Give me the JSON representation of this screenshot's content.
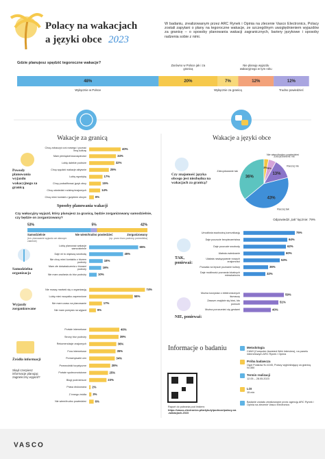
{
  "header": {
    "title": "Polacy na wakacjach",
    "title2": "a języki obce",
    "year": "2023",
    "intro": "W badaniu, zrealizowanym przez ARC Rynek i Opinia na zlecenie Vasco Electronics, Polacy zostali zapytani o plany na tegoroczne wakacje, ze szczególnym uwzględnieniem wyjazdów za granicę – o sposoby planowania wakacji zagranicznych, bariery językowe i sposoby radzenia sobie z nimi."
  },
  "chart_data": [
    {
      "type": "stacked_bar",
      "title": "Gdzie planujesz spędzić tegoroczne wakacje?",
      "categories": [
        "Wyłącznie w Polsce",
        "Zarówno w Polsce jak i za granicą",
        "Wyłącznie za granicą",
        "Nie planuję wyjazdu wakacyjnego w tym roku",
        "Trudno powiedzieć"
      ],
      "values": [
        48,
        20,
        7,
        12,
        12
      ],
      "value_labels": [
        "48%",
        "20%",
        "7%",
        "12%",
        "12%"
      ],
      "colors": [
        "#5fb3e4",
        "#f6c94c",
        "#f8d97a",
        "#f3a27a",
        "#a9a5e0"
      ]
    },
    {
      "type": "hbar",
      "section": "Wakacje za granicą",
      "title": "Powody planowania wyjazdu wakacyjnego za granicą",
      "categories": [
        "Chcę zobaczyć coś nowego i poznać inną kulturę",
        "Mam pieniądze/oszczędności",
        "Lubię dalekie podróże",
        "Chcę spędzić wakacje aktywnie",
        "Lubię egzotykę",
        "Chcę podszlifować język obcy",
        "Chcę odwiedzić rodzinę/znajomych",
        "Chcę mieć kontakt z językiem obcym"
      ],
      "values": [
        40,
        34,
        32,
        25,
        17,
        15,
        14,
        6
      ],
      "value_labels": [
        "40%",
        "34%",
        "32%",
        "25%",
        "17%",
        "15%",
        "14%",
        "6%"
      ],
      "color": "#f6c94c"
    },
    {
      "type": "stacked_bar",
      "section": "Sposoby planowania wakacji",
      "title": "Czy wakacyjny wyjazd, który planujesz za granicą, będzie zorganizowany samodzielnie, czy będzie on zorganizowany?",
      "categories": [
        "Samodzielnie",
        "Nie wiem/trudno powiedzieć",
        "Zorganizowany"
      ],
      "category_notes": [
        "(tzn. planowanie wyjazdu we własnym zakresie)",
        null,
        "(np. przez biuro podróży, pośrednika)"
      ],
      "values": [
        53,
        5,
        42
      ],
      "value_labels": [
        "53%",
        "5%",
        "42%"
      ],
      "colors": [
        "#5fb3e4",
        "#a9a5e0",
        "#f6c94c"
      ]
    },
    {
      "type": "hbar",
      "title": "Samodzielna organizacja",
      "categories": [
        "Lubię planować wakacje samodzielnie",
        "Daje mi to większą swobodę",
        "Nie chcę mieć kontaktu z biurem podróży",
        "Mam złe doświadczenia z biurami podróży",
        "Nie mam zaufania do biur podróży"
      ],
      "values": [
        65,
        45,
        18,
        16,
        10
      ],
      "value_labels": [
        "65%",
        "45%",
        "18%",
        "16%",
        "10%"
      ],
      "color": "#5fb3e4"
    },
    {
      "type": "hbar",
      "title": "Wyjazdy zorganizowane",
      "categories": [
        "Nie muszę martwić się o organizację",
        "Lubię mieć wszystko zapewnione",
        "Nie mam czasu na planowanie",
        "Nie mam pomysłu na wyjazd"
      ],
      "values": [
        74,
        58,
        17,
        9
      ],
      "value_labels": [
        "74%",
        "58%",
        "17%",
        "9%"
      ],
      "color": "#f6c94c"
    },
    {
      "type": "hbar",
      "title": "Źródła informacji",
      "question": "Skąd czerpiesz informacje planując zagraniczny wyjazd?",
      "categories": [
        "Portale internetowe",
        "Strony biur podróży",
        "Rekomendacje znajomych",
        "Fora internetowe",
        "Porównywarki cen",
        "Przewodniki turystyczne",
        "Portale społecznościowe",
        "Blogi podróżnicze",
        "Prasa drukowana",
        "Z innego źródła",
        "Nie wiem/trudno powiedzieć"
      ],
      "values": [
        40,
        39,
        36,
        35,
        34,
        28,
        25,
        23,
        2,
        3,
        6
      ],
      "value_labels": [
        "40%",
        "39%",
        "36%",
        "35%",
        "34%",
        "28%",
        "25%",
        "23%",
        "2%",
        "3%",
        "6%"
      ],
      "color": "#f6c94c"
    },
    {
      "type": "pie",
      "section": "Wakacje a języki obce",
      "title": "Czy znajomość języka obcego jest niezbędna na wakacjach za granicą?",
      "categories": [
        "Zdecydowanie tak",
        "Raczej tak",
        "Raczej nie",
        "Zdecydowanie nie",
        "Nie wiem/trudno powiedzieć"
      ],
      "values": [
        36,
        43,
        13,
        5,
        3
      ],
      "value_labels": [
        "36%",
        "43%",
        "13%",
        "5%",
        "3%"
      ],
      "colors": [
        "#5cc4c0",
        "#3f8fd8",
        "#8a74c9",
        "#d6a3d8",
        "#f4c542"
      ],
      "note": "Odpowiedzi „tak” łącznie: 79%"
    },
    {
      "type": "hbar",
      "title": "TAK, ponieważ:",
      "categories": [
        "Umożliwia swobodną komunikację",
        "Daje poczucie bezpieczeństwa",
        "Daje poczucie swobody",
        "Ułatwia zwiedzanie",
        "Ułatwia nawiązywanie nowych znajomości",
        "Pozwala na lepsze poznanie kultury",
        "Daje możliwość poznania lokalnych mieszkańców"
      ],
      "values": [
        75,
        64,
        62,
        60,
        53,
        36,
        32
      ],
      "value_labels": [
        "75%",
        "64%",
        "62%",
        "60%",
        "53%",
        "36%",
        "32%"
      ],
      "color": "#3f8fd8"
    },
    {
      "type": "hbar",
      "title": "NIE, ponieważ:",
      "categories": [
        "Można korzystać z elektronicznych tłumaczy",
        "Zawsze znajdzie się ktoś, kto pomoże",
        "Można porozumieć się gestami"
      ],
      "values": [
        59,
        51,
        40
      ],
      "value_labels": [
        "59%",
        "51%",
        "40%"
      ],
      "color": "#8a74c9"
    }
  ],
  "info": {
    "title": "Informacje o badaniu",
    "link_text": "Raport do pobrania pod linkiem:",
    "link": "https://vasco-electronics.pl/artykuly/podroze/polacy-na-wakacjach-2023",
    "items": [
      {
        "label": "Metodologia",
        "text": "CAWI (Computer Assisted Web Interview), na panelu internetowym ARC Rynek i Opinia"
      },
      {
        "label": "Próba badawcza",
        "text": "Ogół Polaków N=1045, Polacy wyjeżdżający za granicę N=350"
      },
      {
        "label": "Termin realizacji",
        "text": "12.05 – 28.05.2023"
      },
      {
        "label": "LOI",
        "text": "15 min"
      },
      {
        "label": "Badanie zostało zrealizowane przez agencję ARC Rynek i Opinia na zlecenie Vasco Electronics",
        "text": null
      }
    ]
  },
  "footer": {
    "brand": "VASCO"
  }
}
